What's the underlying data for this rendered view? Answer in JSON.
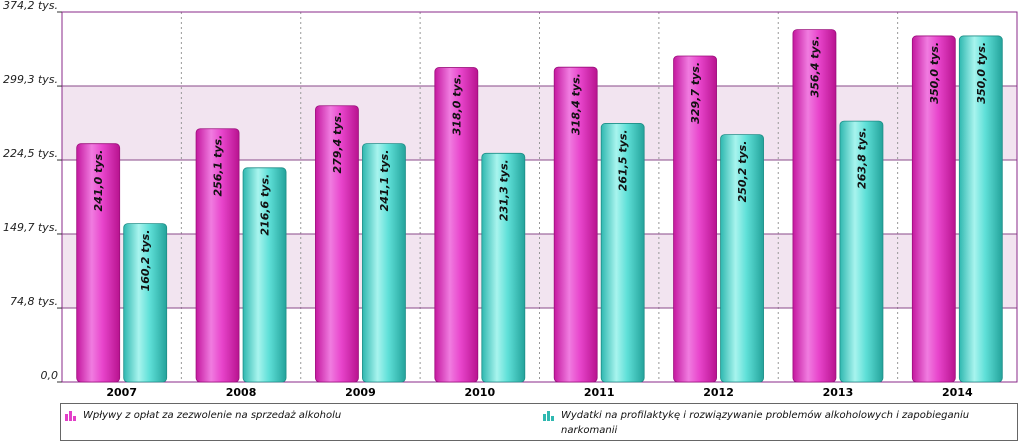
{
  "chart_data": {
    "type": "bar",
    "title": "",
    "xlabel": "",
    "ylabel": "",
    "ylim": [
      0,
      374.2
    ],
    "yticks": [
      {
        "value": 0,
        "label": "0,0"
      },
      {
        "value": 74.8,
        "label": "74,8 tys."
      },
      {
        "value": 149.7,
        "label": "149,7 tys."
      },
      {
        "value": 224.5,
        "label": "224,5 tys."
      },
      {
        "value": 299.3,
        "label": "299,3 tys."
      },
      {
        "value": 374.2,
        "label": "374,2 tys."
      }
    ],
    "categories": [
      "2007",
      "2008",
      "2009",
      "2010",
      "2011",
      "2012",
      "2013",
      "2014"
    ],
    "series": [
      {
        "name": "Wpływy z opłat za zezwolenie na sprzedaż alkoholu",
        "color": "#e23fc8",
        "values": [
          241.0,
          256.1,
          279.4,
          318.0,
          318.4,
          329.7,
          356.4,
          350.0
        ],
        "labels": [
          "241,0 tys.",
          "256,1 tys.",
          "279,4 tys.",
          "318,0 tys.",
          "318,4 tys.",
          "329,7 tys.",
          "356,4 tys.",
          "350,0 tys."
        ]
      },
      {
        "name": "Wydatki na profilaktykę i rozwiązywanie problemów alkoholowych i zapobieganiu narkomanii",
        "color": "#4fd8d0",
        "values": [
          160.2,
          216.6,
          241.1,
          231.3,
          261.5,
          250.2,
          263.8,
          350.0
        ],
        "labels": [
          "160,2 tys.",
          "216,6 tys.",
          "241,1 tys.",
          "231,3 tys.",
          "261,5 tys.",
          "250,2 tys.",
          "263,8 tys.",
          "350,0 tys."
        ]
      }
    ],
    "legend_position": "bottom",
    "grid": true
  }
}
